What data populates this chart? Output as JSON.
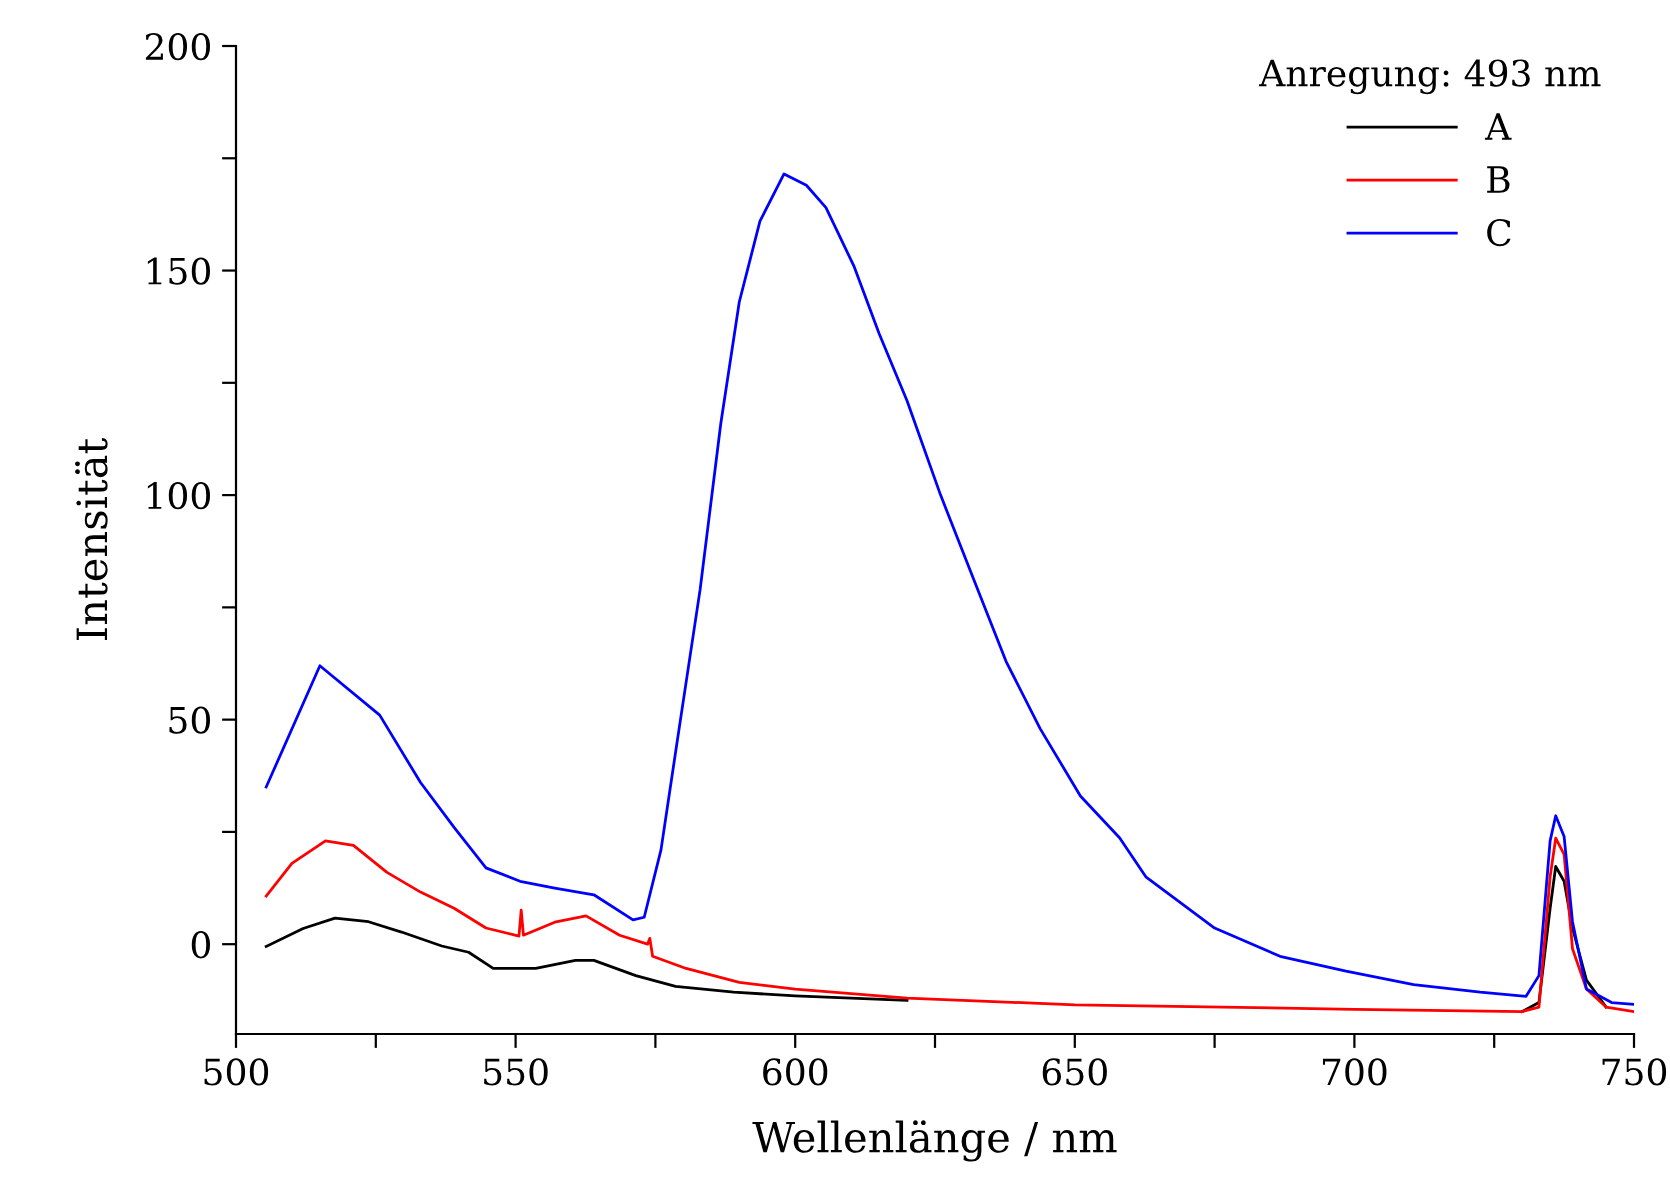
{
  "chart_data": {
    "type": "line",
    "xlabel": "Wellenlänge / nm",
    "ylabel": "Intensität",
    "legend_title": "Anregung: 493 nm",
    "legend": "top right",
    "grid": false,
    "xlim": [
      500,
      750
    ],
    "ylim": [
      -20,
      200
    ],
    "xticks": [
      500,
      {
        "value": 525,
        "label": null
      },
      550,
      {
        "value": 575,
        "label": null
      },
      600,
      {
        "value": 625,
        "label": null
      },
      650,
      {
        "value": 675,
        "label": null
      },
      700,
      {
        "value": 725,
        "label": null
      },
      750
    ],
    "yticks": [
      0,
      {
        "value": 25,
        "label": null
      },
      50,
      {
        "value": 75,
        "label": null
      },
      100,
      {
        "value": 125,
        "label": null
      },
      150,
      {
        "value": 175,
        "label": null
      },
      200
    ],
    "series": [
      {
        "name": "A",
        "color": "#000000",
        "x": [
          505.4,
          512,
          517.7,
          523.7,
          529.6,
          536.8,
          541.6,
          546,
          553.6,
          560.7,
          564,
          571.5,
          578.6,
          589,
          600,
          620,
          650,
          700,
          730,
          733,
          735,
          736,
          737.5,
          739,
          741.5,
          745
        ],
        "values": [
          -0.5,
          3.5,
          5.8,
          5,
          2.7,
          -0.4,
          -1.8,
          -5.4,
          -5.4,
          -3.6,
          -3.6,
          -7,
          -9.4,
          -10.7,
          -11.5,
          -12.5,
          null,
          null,
          -15,
          -13,
          8,
          17.3,
          14,
          3.6,
          -8,
          -14
        ]
      },
      {
        "name": "B",
        "color": "#ff0000",
        "x": [
          505.4,
          510,
          516,
          521,
          527,
          533,
          539,
          544.7,
          550.6,
          551,
          551.4,
          557,
          562.6,
          568.6,
          573.6,
          574,
          574.5,
          580.5,
          590,
          600,
          620,
          650,
          700,
          730,
          733,
          735,
          736,
          737.5,
          739,
          741.5,
          745,
          750
        ],
        "values": [
          10.7,
          18,
          23,
          22,
          16,
          11.6,
          8,
          3.6,
          1.8,
          7.6,
          2,
          4.9,
          6.3,
          2,
          0,
          1.3,
          -2.7,
          -5.4,
          -8.5,
          -10,
          -12,
          -13.5,
          -14.5,
          -15,
          -14,
          15,
          23.6,
          20,
          -1,
          -10,
          -14,
          -15
        ]
      },
      {
        "name": "C",
        "color": "#0000ff",
        "x": [
          505.4,
          515,
          525.7,
          533,
          539,
          544.7,
          550.8,
          557,
          564,
          571,
          573,
          576,
          579,
          583,
          586.7,
          590,
          593.7,
          598,
          602,
          605.5,
          610.5,
          615,
          620,
          626,
          632,
          637.7,
          643.8,
          651,
          658,
          662.7,
          675,
          686.7,
          698.5,
          710.6,
          722.5,
          730.7,
          733,
          735,
          736,
          737.5,
          739,
          741.5,
          746,
          750
        ],
        "values": [
          35,
          62,
          51,
          36,
          26,
          17,
          14,
          12.5,
          11,
          5.4,
          6,
          21,
          46,
          79,
          116,
          143,
          161,
          171.5,
          169,
          164,
          151,
          136,
          121,
          100,
          81,
          63,
          48,
          33,
          23.7,
          15,
          3.6,
          -2.7,
          -6,
          -9,
          -10.7,
          -11.6,
          -7,
          23,
          28.6,
          24,
          5,
          -10,
          -13,
          -13.4
        ]
      }
    ]
  }
}
